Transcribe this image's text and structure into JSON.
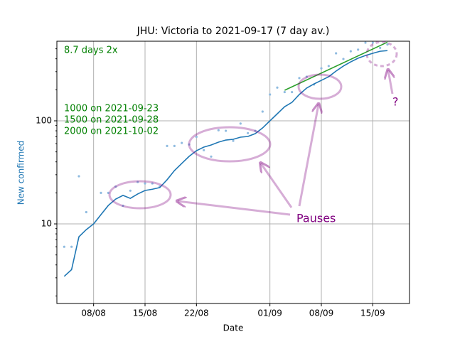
{
  "chart_data": {
    "type": "line",
    "title": "JHU: Victoria to 2021-09-17 (7 day av.)",
    "x_label": "Date",
    "y_label": "New confirmed",
    "y_label_color": "#1f77b4",
    "log_y": true,
    "grid": true,
    "xlim": [
      "03/08",
      "20/09"
    ],
    "xticks": [
      "08/08",
      "15/08",
      "22/08",
      "01/09",
      "08/09",
      "15/09"
    ],
    "ylim": [
      1.69,
      592
    ],
    "yticks": [
      10,
      100
    ],
    "y_minor_ticks": [
      2,
      3,
      4,
      5,
      6,
      7,
      8,
      9,
      20,
      30,
      40,
      50,
      60,
      70,
      80,
      90,
      200,
      300,
      400,
      500
    ],
    "series": [
      {
        "type": "scatter",
        "color": "#8fbbe0",
        "x": [
          "04/08",
          "05/08",
          "06/08",
          "07/08",
          "09/08",
          "10/08",
          "11/08",
          "12/08",
          "13/08",
          "14/08",
          "15/08",
          "16/08",
          "17/08",
          "18/08",
          "19/08",
          "20/08",
          "21/08",
          "22/08",
          "23/08",
          "24/08",
          "25/08",
          "26/08",
          "27/08",
          "28/08",
          "29/08",
          "30/08",
          "31/08",
          "01/09",
          "02/09",
          "03/09",
          "04/09",
          "05/09",
          "06/09",
          "07/09",
          "08/09",
          "09/09",
          "10/09",
          "11/09",
          "12/09",
          "13/09",
          "14/09",
          "15/09",
          "16/09",
          "17/09"
        ],
        "values": [
          6,
          6,
          29,
          13,
          20,
          20,
          23,
          15,
          21,
          25.5,
          24.7,
          24.7,
          23,
          57,
          57,
          61,
          59,
          70,
          52,
          45,
          81,
          80,
          64,
          94,
          76,
          80,
          123,
          180,
          210,
          190,
          190,
          260,
          268,
          225,
          323,
          340,
          452,
          398,
          473,
          490,
          573,
          573,
          510,
          550
        ]
      },
      {
        "type": "line",
        "color": "#1f77b4",
        "x": [
          "04/08",
          "05/08",
          "06/08",
          "07/08",
          "08/08",
          "09/08",
          "10/08",
          "11/08",
          "12/08",
          "13/08",
          "14/08",
          "15/08",
          "16/08",
          "17/08",
          "18/08",
          "19/08",
          "20/08",
          "21/08",
          "22/08",
          "23/08",
          "24/08",
          "25/08",
          "26/08",
          "27/08",
          "28/08",
          "29/08",
          "30/08",
          "31/08",
          "01/09",
          "02/09",
          "03/09",
          "04/09",
          "05/09",
          "06/09",
          "07/09",
          "08/09",
          "09/09",
          "10/09",
          "11/09",
          "12/09",
          "13/09",
          "14/09",
          "15/09",
          "16/09",
          "17/09"
        ],
        "values": [
          3.1,
          3.6,
          7.5,
          8.8,
          10,
          12.3,
          15.1,
          17.4,
          18.9,
          17.7,
          19.5,
          21.1,
          21.7,
          22.5,
          26.8,
          32.9,
          38.6,
          45.2,
          51.3,
          55.6,
          58.3,
          62.1,
          65.1,
          66.2,
          69.4,
          70.5,
          75.1,
          85.3,
          100,
          117,
          137,
          151,
          180,
          208,
          228,
          247,
          268,
          304,
          340,
          373,
          405,
          430,
          452,
          473,
          480
        ]
      },
      {
        "type": "line",
        "color": "#2ca02c",
        "x": [
          "03/09",
          "17/09"
        ],
        "values": [
          198,
          580
        ]
      }
    ],
    "annotations": {
      "doubling": "8.7 days 2x",
      "forecast": [
        "1000 on 2021-09-23",
        "1500 on 2021-09-28",
        "2000 on 2021-10-02"
      ],
      "forecast_color": "#008000",
      "pauses": "Pauses",
      "question": "?",
      "note_color": "#800080"
    }
  }
}
